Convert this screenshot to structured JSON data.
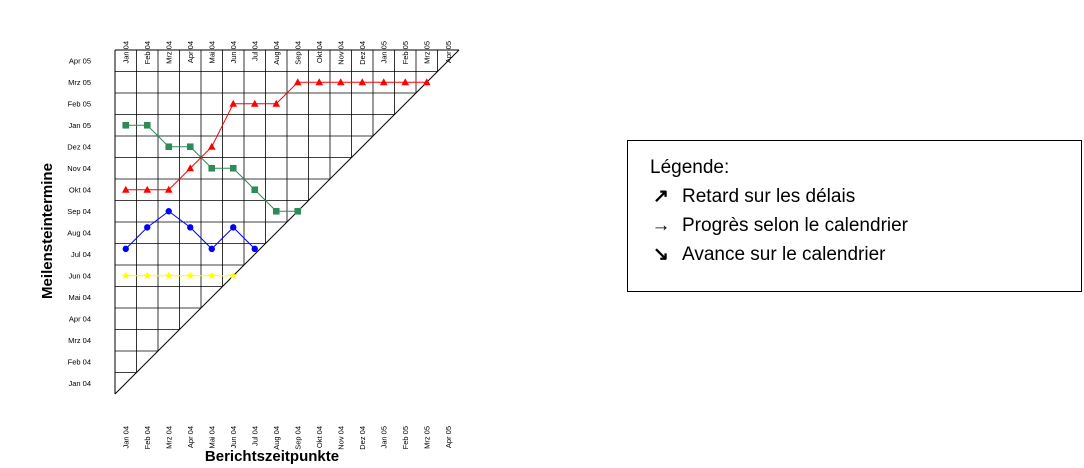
{
  "chart_data": {
    "type": "line",
    "title": "",
    "xlabel": "Berichtszeitpunkte",
    "ylabel": "Meilensteintermine",
    "x_categories": [
      "Jan 04",
      "Feb 04",
      "Mrz 04",
      "Apr 04",
      "Mai 04",
      "Jun 04",
      "Jul 04",
      "Aug 04",
      "Sep 04",
      "Okt 04",
      "Nov 04",
      "Dez 04",
      "Jan 05",
      "Feb 05",
      "Mrz 05",
      "Apr 05"
    ],
    "y_categories": [
      "Jan 04",
      "Feb 04",
      "Mrz 04",
      "Apr 04",
      "Mai 04",
      "Jun 04",
      "Jul 04",
      "Aug 04",
      "Sep 04",
      "Okt 04",
      "Nov 04",
      "Dez 04",
      "Jan 05",
      "Feb 05",
      "Mrz 05",
      "Apr 05"
    ],
    "grid": true,
    "diagonal": true,
    "series": [
      {
        "color": "#ffff00",
        "marker": "star",
        "x": [
          0,
          1,
          2,
          3,
          4,
          5
        ],
        "y": [
          5,
          5,
          5,
          5,
          5,
          5
        ]
      },
      {
        "color": "#0000ff",
        "marker": "circle",
        "x": [
          0,
          1,
          2,
          3,
          4,
          5,
          6
        ],
        "y": [
          6.25,
          7.25,
          8.0,
          7.25,
          6.25,
          7.25,
          6.25
        ]
      },
      {
        "color": "#2e8b57",
        "marker": "square",
        "x": [
          0,
          1,
          2,
          3,
          4,
          5,
          6,
          7,
          8
        ],
        "y": [
          12.0,
          12.0,
          11.0,
          11.0,
          10.0,
          10.0,
          9.0,
          8.0,
          8.0
        ]
      },
      {
        "color": "#ff0000",
        "marker": "triangle",
        "x": [
          0,
          1,
          2,
          3,
          4,
          5,
          6,
          7,
          8,
          9,
          10,
          11,
          12,
          13,
          14
        ],
        "y": [
          9.0,
          9.0,
          9.0,
          10.0,
          11.0,
          13.0,
          13.0,
          13.0,
          14.0,
          14.0,
          14.0,
          14.0,
          14.0,
          14.0,
          14.0
        ]
      }
    ]
  },
  "legend": {
    "title": "Légende:",
    "items": [
      {
        "icon": "arrow-up-right-icon",
        "glyph": "↗",
        "label": "Retard sur les délais"
      },
      {
        "icon": "arrow-right-icon",
        "glyph": "→",
        "label": "Progrès selon le calendrier"
      },
      {
        "icon": "arrow-down-right-icon",
        "glyph": "↘",
        "label": "Avance sur le calendrier"
      }
    ]
  }
}
